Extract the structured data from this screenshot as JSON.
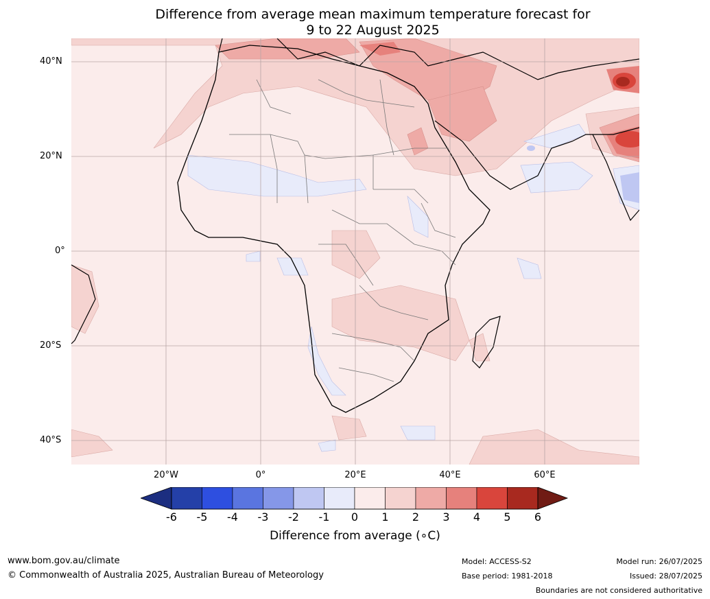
{
  "title": {
    "line1": "Difference from average mean maximum temperature forecast for",
    "line2": "9 to 22 August 2025"
  },
  "map": {
    "lat_labels": [
      "40°N",
      "20°N",
      "0°",
      "20°S",
      "40°S"
    ],
    "lon_labels": [
      "20°W",
      "0°",
      "20°E",
      "40°E",
      "60°E"
    ],
    "region": "Africa",
    "layers": [
      "temperature anomaly contours",
      "coastlines",
      "country boundaries",
      "graticule"
    ]
  },
  "colorbar": {
    "ticks": [
      "-6",
      "-5",
      "-4",
      "-3",
      "-2",
      "-1",
      "0",
      "1",
      "2",
      "3",
      "4",
      "5",
      "6"
    ],
    "colors": [
      "#2440a8",
      "#2e4fe0",
      "#5a75e0",
      "#8597e8",
      "#bfc7f2",
      "#e8ebfa",
      "#fbeceb",
      "#f5d3d0",
      "#eeaaa6",
      "#e6817c",
      "#d9453c",
      "#a8291f"
    ],
    "extend_low_color": "#1c2e80",
    "extend_high_color": "#701b14",
    "label": "Difference from average (∘C)"
  },
  "footer": {
    "website": "www.bom.gov.au/climate",
    "copyright": "© Commonwealth of Australia 2025, Australian Bureau of Meteorology",
    "model": "Model: ACCESS-S2",
    "base_period": "Base period: 1981-2018",
    "model_run": "Model run: 26/07/2025",
    "issued": "Issued: 28/07/2025",
    "disclaimer": "Boundaries are not considered authoritative"
  }
}
